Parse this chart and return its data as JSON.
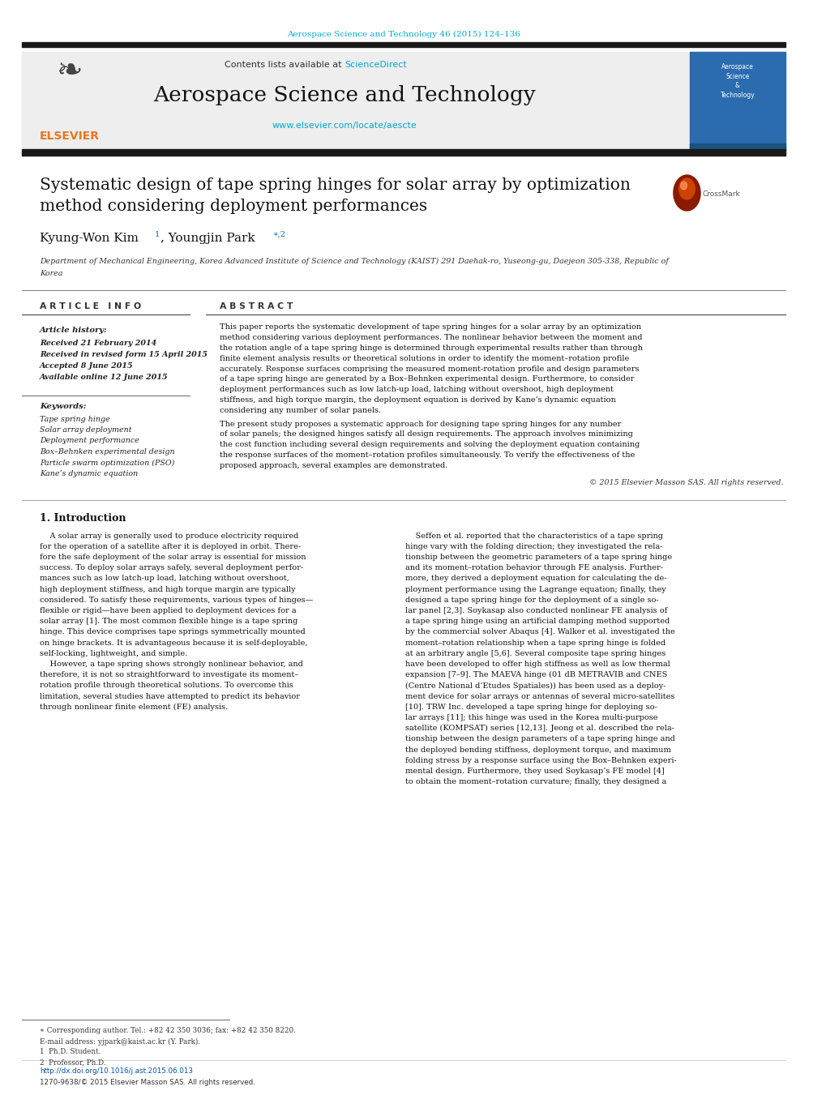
{
  "bg_color": "#ffffff",
  "top_journal_ref": "Aerospace Science and Technology 46 (2015) 124–136",
  "top_journal_ref_color": "#00aacc",
  "header_bg": "#eeeeee",
  "contents_line": "Contents lists available at ",
  "science_direct": "ScienceDirect",
  "science_direct_color": "#00aacc",
  "journal_title": "Aerospace Science and Technology",
  "journal_url": "www.elsevier.com/locate/aescte",
  "journal_url_color": "#00aacc",
  "black_bar_color": "#1a1a1a",
  "sidebar_blue": "#2b6cb0",
  "paper_title_line1": "Systematic design of tape spring hinges for solar array by optimization",
  "paper_title_line2": "method considering deployment performances",
  "author1": "Kyung-Won Kim",
  "author1_sup": "1",
  "author2": ", Youngjin Park",
  "author2_sup": "∗,2",
  "affiliation_line1": "Department of Mechanical Engineering, Korea Advanced Institute of Science and Technology (KAIST) 291 Daehak-ro, Yuseong-gu, Daejeon 305-338, Republic of",
  "affiliation_line2": "Korea",
  "article_info_header": "A R T I C L E   I N F O",
  "abstract_header": "A B S T R A C T",
  "article_history_label": "Article history:",
  "history_lines": [
    "Received 21 February 2014",
    "Received in revised form 15 April 2015",
    "Accepted 8 June 2015",
    "Available online 12 June 2015"
  ],
  "keywords_label": "Keywords:",
  "keywords": [
    "Tape spring hinge",
    "Solar array deployment",
    "Deployment performance",
    "Box–Behnken experimental design",
    "Particle swarm optimization (PSO)",
    "Kane’s dynamic equation"
  ],
  "abstract_lines1": [
    "This paper reports the systematic development of tape spring hinges for a solar array by an optimization",
    "method considering various deployment performances. The nonlinear behavior between the moment and",
    "the rotation angle of a tape spring hinge is determined through experimental results rather than through",
    "finite element analysis results or theoretical solutions in order to identify the moment–rotation profile",
    "accurately. Response surfaces comprising the measured moment-rotation profile and design parameters",
    "of a tape spring hinge are generated by a Box–Behnken experimental design. Furthermore, to consider",
    "deployment performances such as low latch-up load, latching without overshoot, high deployment",
    "stiffness, and high torque margin, the deployment equation is derived by Kane’s dynamic equation",
    "considering any number of solar panels."
  ],
  "abstract_lines2": [
    "The present study proposes a systematic approach for designing tape spring hinges for any number",
    "of solar panels; the designed hinges satisfy all design requirements. The approach involves minimizing",
    "the cost function including several design requirements and solving the deployment equation containing",
    "the response surfaces of the moment–rotation profiles simultaneously. To verify the effectiveness of the",
    "proposed approach, several examples are demonstrated."
  ],
  "copyright": "© 2015 Elsevier Masson SAS. All rights reserved.",
  "intro_header": "1. Introduction",
  "intro_col1_lines": [
    "    A solar array is generally used to produce electricity required",
    "for the operation of a satellite after it is deployed in orbit. There-",
    "fore the safe deployment of the solar array is essential for mission",
    "success. To deploy solar arrays safely, several deployment perfor-",
    "mances such as low latch-up load, latching without overshoot,",
    "high deployment stiffness, and high torque margin are typically",
    "considered. To satisfy these requirements, various types of hinges—",
    "flexible or rigid—have been applied to deployment devices for a",
    "solar array [1]. The most common flexible hinge is a tape spring",
    "hinge. This device comprises tape springs symmetrically mounted",
    "on hinge brackets. It is advantageous because it is self-deployable,",
    "self-locking, lightweight, and simple.",
    "    However, a tape spring shows strongly nonlinear behavior, and",
    "therefore, it is not so straightforward to investigate its moment–",
    "rotation profile through theoretical solutions. To overcome this",
    "limitation, several studies have attempted to predict its behavior",
    "through nonlinear finite element (FE) analysis."
  ],
  "intro_col2_lines": [
    "    Seffen et al. reported that the characteristics of a tape spring",
    "hinge vary with the folding direction; they investigated the rela-",
    "tionship between the geometric parameters of a tape spring hinge",
    "and its moment–rotation behavior through FE analysis. Further-",
    "more, they derived a deployment equation for calculating the de-",
    "ployment performance using the Lagrange equation; finally, they",
    "designed a tape spring hinge for the deployment of a single so-",
    "lar panel [2,3]. Soykasap also conducted nonlinear FE analysis of",
    "a tape spring hinge using an artificial damping method supported",
    "by the commercial solver Abaqus [4]. Walker et al. investigated the",
    "moment–rotation relationship when a tape spring hinge is folded",
    "at an arbitrary angle [5,6]. Several composite tape spring hinges",
    "have been developed to offer high stiffness as well as low thermal",
    "expansion [7–9]. The MAEVA hinge (01 dB METRAVIB and CNES",
    "(Centre National d’Etudes Spatiales)) has been used as a deploy-",
    "ment device for solar arrays or antennas of several micro-satellites",
    "[10]. TRW Inc. developed a tape spring hinge for deploying so-",
    "lar arrays [11]; this hinge was used in the Korea multi-purpose",
    "satellite (KOMPSAT) series [12,13]. Jeong et al. described the rela-",
    "tionship between the design parameters of a tape spring hinge and",
    "the deployed bending stiffness, deployment torque, and maximum",
    "folding stress by a response surface using the Box–Behnken experi-",
    "mental design. Furthermore, they used Soykasap’s FE model [4]",
    "to obtain the moment–rotation curvature; finally, they designed a"
  ],
  "footnote1": "∗ Corresponding author. Tel.: +82 42 350 3036; fax: +82 42 350 8220.",
  "footnote2": "E-mail address: yjpark@kaist.ac.kr (Y. Park).",
  "footnote3": "1  Ph.D. Student.",
  "footnote4": "2  Professor, Ph.D.",
  "doi": "http://dx.doi.org/10.1016/j.ast.2015.06.013",
  "issn": "1270-9638/© 2015 Elsevier Masson SAS. All rights reserved."
}
